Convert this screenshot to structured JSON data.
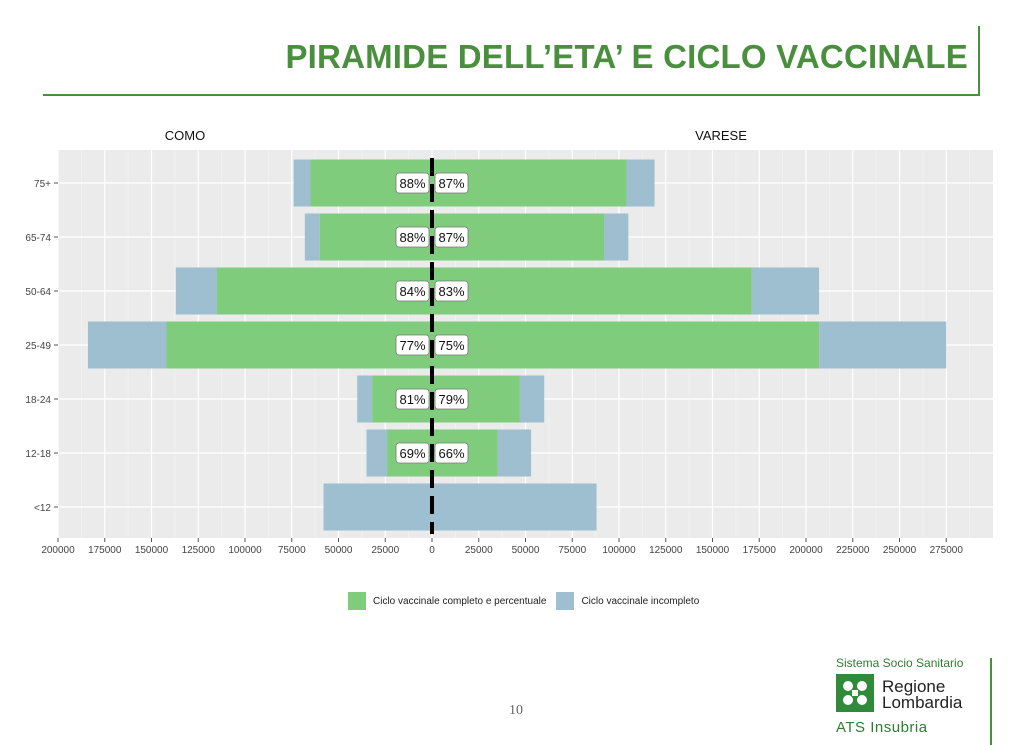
{
  "title": "PIRAMIDE DELL’ETA’ E CICLO VACCINALE",
  "page_number": "10",
  "logo": {
    "system": "Sistema Socio Sanitario",
    "region_line1": "Regione",
    "region_line2": "Lombardia",
    "ats": "ATS Insubria"
  },
  "colors": {
    "title": "#4a8f3e",
    "complete": "#7fcc7c",
    "incomplete": "#9dbfcf",
    "panel": "#ebebeb"
  },
  "chart_data": {
    "type": "bar",
    "orientation": "horizontal-population-pyramid",
    "panel_labels": {
      "left": "COMO",
      "right": "VARESE"
    },
    "categories": [
      "75+",
      "65-74",
      "50-64",
      "25-49",
      "18-24",
      "12-18",
      "<12"
    ],
    "x_ticks": [
      "200000",
      "175000",
      "150000",
      "125000",
      "100000",
      "75000",
      "50000",
      "25000",
      "0",
      "25000",
      "50000",
      "75000",
      "100000",
      "125000",
      "150000",
      "175000",
      "200000",
      "225000",
      "250000",
      "275000"
    ],
    "xlim": [
      -200000,
      300000
    ],
    "series": [
      {
        "name": "Ciclo vaccinale completo e percentuale",
        "left_values": [
          65000,
          60000,
          115000,
          142000,
          32000,
          24000,
          0
        ],
        "right_values": [
          104000,
          92000,
          171000,
          207000,
          47000,
          35000,
          0
        ]
      },
      {
        "name": "Ciclo vaccinale incompleto",
        "left_values": [
          9000,
          8000,
          22000,
          42000,
          8000,
          11000,
          58000
        ],
        "right_values": [
          15000,
          13000,
          36000,
          68000,
          13000,
          18000,
          88000
        ]
      }
    ],
    "percent_labels": {
      "left": [
        "88%",
        "88%",
        "84%",
        "77%",
        "81%",
        "69%",
        ""
      ],
      "right": [
        "87%",
        "87%",
        "83%",
        "75%",
        "79%",
        "66%",
        ""
      ]
    },
    "grid": true,
    "legend_position": "bottom"
  }
}
